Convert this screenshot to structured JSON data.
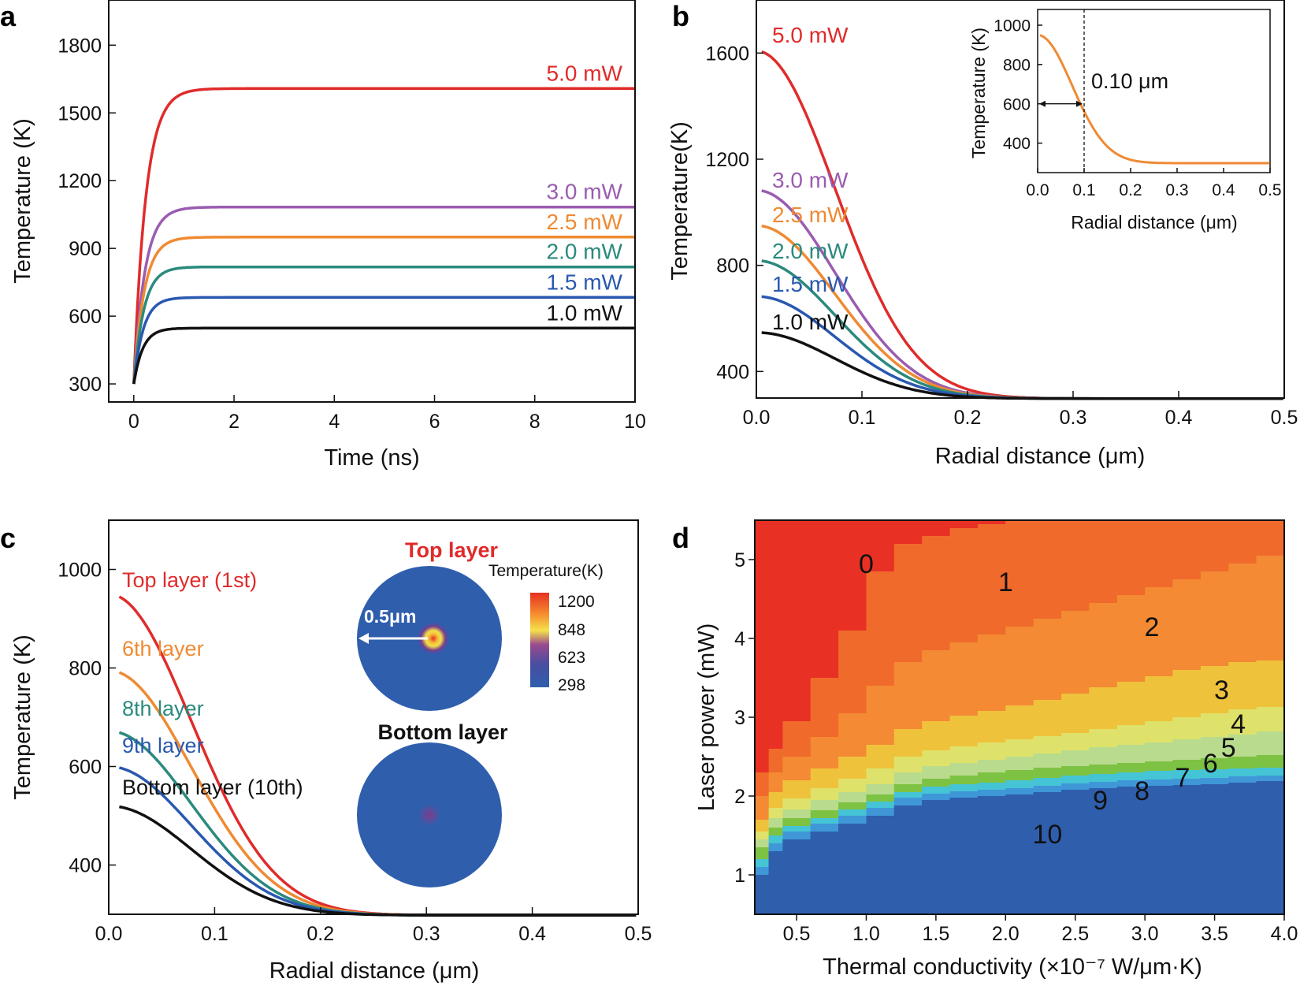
{
  "figure": {
    "panel_labels": [
      "a",
      "b",
      "c",
      "d"
    ]
  },
  "chart_data": [
    {
      "id": "a",
      "type": "line",
      "title": "",
      "xlabel": "Time (ns)",
      "ylabel": "Temperature (K)",
      "xlim": [
        -0.5,
        10
      ],
      "ylim": [
        220,
        2000
      ],
      "xticks": [
        "0",
        "2",
        "4",
        "6",
        "8",
        "10"
      ],
      "yticks": [
        "300",
        "600",
        "900",
        "1200",
        "1500",
        "1800"
      ],
      "series": [
        {
          "name": "5.0 mW",
          "color": "#e02b2b",
          "t0": 300,
          "plateau": 1608,
          "tau": 0.24
        },
        {
          "name": "3.0 mW",
          "color": "#9a5cb0",
          "t0": 300,
          "plateau": 1083,
          "tau": 0.22
        },
        {
          "name": "2.5 mW",
          "color": "#ef8a33",
          "t0": 300,
          "plateau": 950,
          "tau": 0.21
        },
        {
          "name": "2.0 mW",
          "color": "#2a8a7d",
          "t0": 300,
          "plateau": 818,
          "tau": 0.2
        },
        {
          "name": "1.5 mW",
          "color": "#2a58b0",
          "t0": 300,
          "plateau": 683,
          "tau": 0.19
        },
        {
          "name": "1.0 mW",
          "color": "#111111",
          "t0": 300,
          "plateau": 547,
          "tau": 0.18
        }
      ]
    },
    {
      "id": "b",
      "type": "line",
      "title": "",
      "xlabel": "Radial distance (μm)",
      "ylabel": "Temperature(K)",
      "xlim": [
        0,
        0.5
      ],
      "ylim": [
        300,
        1800
      ],
      "xticks": [
        "0.0",
        "0.1",
        "0.2",
        "0.3",
        "0.4",
        "0.5"
      ],
      "yticks": [
        "400",
        "800",
        "1200",
        "1600"
      ],
      "series": [
        {
          "name": "5.0 mW",
          "color": "#e02b2b",
          "peak": 1608,
          "base": 298
        },
        {
          "name": "3.0 mW",
          "color": "#9a5cb0",
          "peak": 1083,
          "base": 298
        },
        {
          "name": "2.5 mW",
          "color": "#ef8a33",
          "peak": 950,
          "base": 298
        },
        {
          "name": "2.0 mW",
          "color": "#2a8a7d",
          "peak": 818,
          "base": 298
        },
        {
          "name": "1.5 mW",
          "color": "#2a58b0",
          "peak": 683,
          "base": 298
        },
        {
          "name": "1.0 mW",
          "color": "#111111",
          "peak": 547,
          "base": 298
        }
      ],
      "inset": {
        "xlabel": "Radial distance (μm)",
        "ylabel": "Temperature (K)",
        "xlim": [
          0,
          0.5
        ],
        "ylim": [
          250,
          1080
        ],
        "xticks": [
          "0.0",
          "0.1",
          "0.2",
          "0.3",
          "0.4",
          "0.5"
        ],
        "yticks": [
          "400",
          "600",
          "800",
          "1000"
        ],
        "annotation": "0.10 μm",
        "marker_x": 0.1,
        "series": [
          {
            "name": "2.5 mW",
            "color": "#ef8a33",
            "peak": 950,
            "base": 298
          }
        ]
      }
    },
    {
      "id": "c",
      "type": "line",
      "title": "",
      "xlabel": "Radial distance (μm)",
      "ylabel": "Temperature (K)",
      "xlim": [
        0,
        0.5
      ],
      "ylim": [
        300,
        1100
      ],
      "xticks": [
        "0.0",
        "0.1",
        "0.2",
        "0.3",
        "0.4",
        "0.5"
      ],
      "yticks": [
        "400",
        "600",
        "800",
        "1000"
      ],
      "series": [
        {
          "name": "Top layer (1st)",
          "color": "#e02b2b",
          "peak": 950,
          "base": 298
        },
        {
          "name": "6th layer",
          "color": "#ef8a33",
          "peak": 795,
          "base": 298
        },
        {
          "name": "8th layer",
          "color": "#2a8a7d",
          "peak": 672,
          "base": 298
        },
        {
          "name": "9th layer",
          "color": "#2a58b0",
          "peak": 600,
          "base": 298
        },
        {
          "name": "Bottom layer (10th)",
          "color": "#111111",
          "peak": 520,
          "base": 298
        }
      ],
      "inset": {
        "top_title": "Top layer",
        "bottom_title": "Bottom layer",
        "scale_label": "0.5μm",
        "colorbar_title": "Temperature(K)",
        "colorbar_ticks": [
          "1200",
          "848",
          "623",
          "298"
        ]
      }
    },
    {
      "id": "d",
      "type": "heatmap",
      "title": "",
      "xlabel": "Thermal conductivity (×10⁻⁷ W/μm·K)",
      "ylabel": "Laser power (mW)",
      "xlim": [
        0.2,
        4.0
      ],
      "ylim": [
        0.5,
        5.5
      ],
      "xticks": [
        "0.5",
        "1.0",
        "1.5",
        "2.0",
        "2.5",
        "3.0",
        "3.5",
        "4.0"
      ],
      "yticks": [
        "1",
        "2",
        "3",
        "4",
        "5"
      ],
      "colors": [
        "#e83124",
        "#f06a2c",
        "#f48a34",
        "#f5a83a",
        "#efc23c",
        "#dfe26a",
        "#b9db8e",
        "#7dc242",
        "#45c4d6",
        "#3f97d8",
        "#2f5ead"
      ],
      "regions": [
        {
          "label": "0",
          "x": 1.0,
          "y": 4.95
        },
        {
          "label": "1",
          "x": 2.0,
          "y": 4.72
        },
        {
          "label": "2",
          "x": 3.05,
          "y": 4.15
        },
        {
          "label": "3",
          "x": 3.55,
          "y": 3.35
        },
        {
          "label": "4",
          "x": 3.67,
          "y": 2.92
        },
        {
          "label": "5",
          "x": 3.6,
          "y": 2.62
        },
        {
          "label": "6",
          "x": 3.47,
          "y": 2.42
        },
        {
          "label": "7",
          "x": 3.27,
          "y": 2.24
        },
        {
          "label": "8",
          "x": 2.98,
          "y": 2.07
        },
        {
          "label": "9",
          "x": 2.68,
          "y": 1.95
        },
        {
          "label": "10",
          "x": 2.3,
          "y": 1.52
        }
      ],
      "boundaries": {
        "x": [
          0.2,
          0.3,
          0.4,
          0.6,
          0.8,
          1.0,
          1.2,
          1.4,
          1.6,
          1.8,
          2.0,
          2.2,
          2.4,
          2.6,
          2.8,
          3.0,
          3.2,
          3.4,
          3.6,
          3.8,
          4.0
        ],
        "levels": [
          [
            1.0,
            1.3,
            1.45,
            1.55,
            1.65,
            1.75,
            1.88,
            1.95,
            1.98,
            2.0,
            2.02,
            2.05,
            2.08,
            2.1,
            2.12,
            2.13,
            2.14,
            2.15,
            2.17,
            2.19,
            2.2
          ],
          [
            1.1,
            1.4,
            1.55,
            1.65,
            1.75,
            1.85,
            1.98,
            2.03,
            2.06,
            2.08,
            2.1,
            2.13,
            2.16,
            2.18,
            2.2,
            2.21,
            2.22,
            2.23,
            2.25,
            2.26,
            2.28
          ],
          [
            1.2,
            1.5,
            1.62,
            1.72,
            1.83,
            1.93,
            2.05,
            2.12,
            2.15,
            2.17,
            2.2,
            2.23,
            2.26,
            2.28,
            2.3,
            2.32,
            2.33,
            2.34,
            2.35,
            2.36,
            2.38
          ],
          [
            1.35,
            1.6,
            1.72,
            1.82,
            1.92,
            2.02,
            2.15,
            2.22,
            2.26,
            2.3,
            2.33,
            2.36,
            2.38,
            2.4,
            2.42,
            2.44,
            2.46,
            2.48,
            2.5,
            2.52,
            2.55
          ],
          [
            1.45,
            1.72,
            1.83,
            1.95,
            2.05,
            2.15,
            2.3,
            2.38,
            2.42,
            2.46,
            2.5,
            2.54,
            2.58,
            2.62,
            2.65,
            2.68,
            2.72,
            2.75,
            2.78,
            2.82,
            2.85
          ],
          [
            1.55,
            1.85,
            1.97,
            2.1,
            2.22,
            2.35,
            2.5,
            2.58,
            2.63,
            2.68,
            2.72,
            2.76,
            2.8,
            2.85,
            2.9,
            2.95,
            3.0,
            3.05,
            3.1,
            3.13,
            3.15
          ],
          [
            1.7,
            2.05,
            2.2,
            2.35,
            2.5,
            2.65,
            2.85,
            2.95,
            3.02,
            3.08,
            3.15,
            3.22,
            3.3,
            3.38,
            3.45,
            3.52,
            3.6,
            3.65,
            3.7,
            3.72,
            3.73
          ],
          [
            2.0,
            2.3,
            2.5,
            2.75,
            3.05,
            3.4,
            3.7,
            3.85,
            3.95,
            4.05,
            4.15,
            4.25,
            4.35,
            4.45,
            4.55,
            4.65,
            4.75,
            4.85,
            4.95,
            5.05,
            5.12
          ],
          [
            2.3,
            2.6,
            2.95,
            3.5,
            4.1,
            4.85,
            5.2,
            5.3,
            5.4,
            5.45,
            5.5,
            5.5,
            5.5,
            5.5,
            5.5,
            5.5,
            5.5,
            5.5,
            5.5,
            5.5,
            5.5
          ]
        ]
      }
    }
  ]
}
